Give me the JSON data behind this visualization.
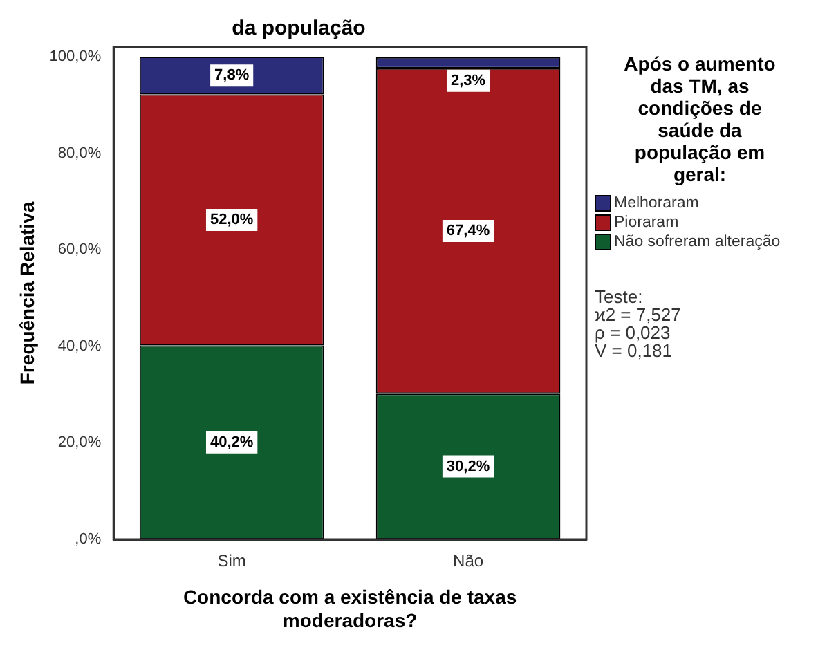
{
  "chart_data": {
    "type": "bar",
    "title": "da população",
    "xlabel": "Concorda com a existência de taxas moderadoras?",
    "ylabel": "Frequência Relativa",
    "legend_title": "Após o aumento das TM, as condições de saúde da população em geral:",
    "categories": [
      "Sim",
      "Não"
    ],
    "stacked": true,
    "legend": "right",
    "series": [
      {
        "name": "Não sofreram alteração",
        "color": "#0f5c2e",
        "values": [
          40.2,
          30.2
        ],
        "value_labels": [
          "40,2%",
          "30,2%"
        ]
      },
      {
        "name": "Pioraram",
        "color": "#a5191e",
        "values": [
          52.0,
          67.4
        ],
        "value_labels": [
          "52,0%",
          "67,4%"
        ]
      },
      {
        "name": "Melhoraram",
        "color": "#2b2d7a",
        "values": [
          7.8,
          2.3
        ],
        "value_labels": [
          "7,8%",
          "2,3%"
        ]
      }
    ],
    "ylim": [
      0,
      102
    ],
    "yticks": [
      {
        "value": 0,
        "label": ",0%"
      },
      {
        "value": 20,
        "label": "20,0%"
      },
      {
        "value": 40,
        "label": "40,0%"
      },
      {
        "value": 60,
        "label": "60,0%"
      },
      {
        "value": 80,
        "label": "80,0%"
      },
      {
        "value": 100,
        "label": "100,0%"
      }
    ],
    "annotations": [
      "Teste:",
      "ϰ2 = 7,527",
      "ρ = 0,023",
      "V = 0,181"
    ]
  }
}
